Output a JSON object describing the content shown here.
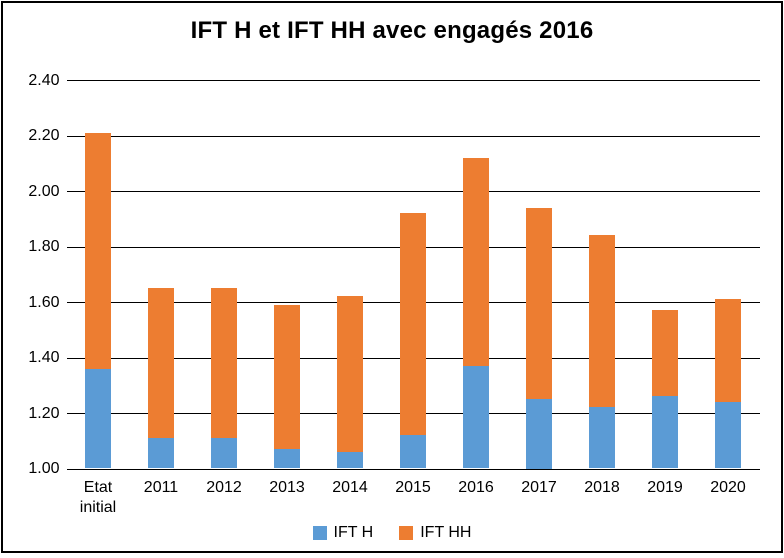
{
  "title": "IFT H et IFT HH avec engagés 2016",
  "colors": {
    "ift_h": "#5B9BD5",
    "ift_hh": "#ED7D31",
    "grid": "#000000",
    "text": "#000000",
    "background": "#FFFFFF"
  },
  "legend": {
    "items": [
      {
        "label": "IFT H",
        "color": "#5B9BD5"
      },
      {
        "label": "IFT HH",
        "color": "#ED7D31"
      }
    ],
    "position": "bottom"
  },
  "y_axis": {
    "min": 1.0,
    "max": 2.4,
    "step": 0.2,
    "tick_labels": [
      "2.40",
      "2.20",
      "2.00",
      "1.80",
      "1.60",
      "1.40",
      "1.20",
      "1.00"
    ]
  },
  "chart_data": {
    "type": "bar",
    "stacked": true,
    "title": "IFT H et IFT HH avec engagés 2016",
    "categories": [
      "Etat initial",
      "2011",
      "2012",
      "2013",
      "2014",
      "2015",
      "2016",
      "2017",
      "2018",
      "2019",
      "2020"
    ],
    "series": [
      {
        "name": "IFT H",
        "color": "#5B9BD5",
        "values": [
          1.36,
          1.11,
          1.11,
          1.07,
          1.06,
          1.12,
          1.37,
          1.25,
          1.22,
          1.26,
          1.24
        ]
      },
      {
        "name": "IFT HH",
        "color": "#ED7D31",
        "values": [
          0.85,
          0.54,
          0.54,
          0.52,
          0.56,
          0.8,
          0.75,
          0.69,
          0.62,
          0.31,
          0.37
        ]
      }
    ],
    "stack_totals": [
      2.21,
      1.65,
      1.65,
      1.59,
      1.62,
      1.92,
      2.12,
      1.94,
      1.84,
      1.57,
      1.61
    ],
    "xlabel": "",
    "ylabel": "",
    "ylim": [
      1.0,
      2.4
    ],
    "grid": true,
    "legend_position": "bottom"
  }
}
